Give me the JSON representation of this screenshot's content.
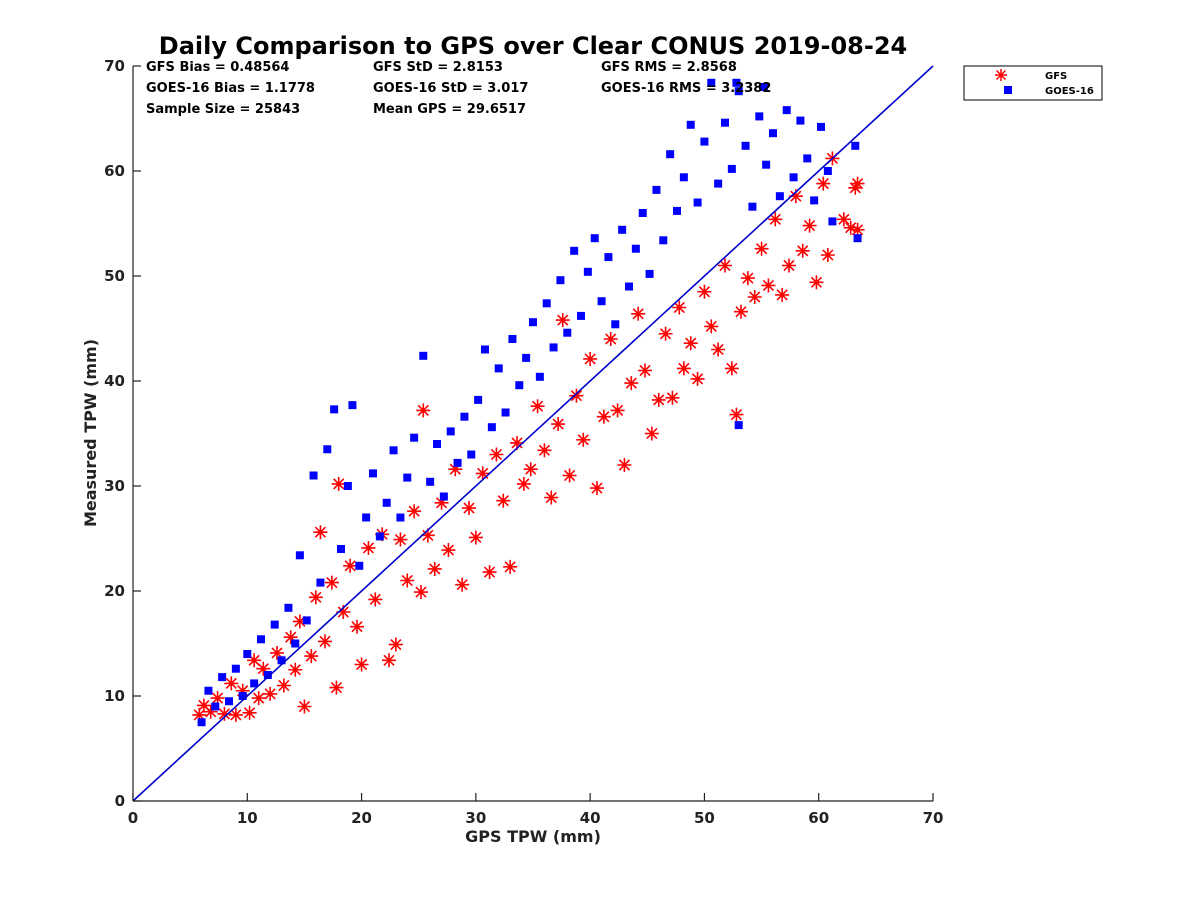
{
  "chart_data": {
    "type": "scatter",
    "title": "Daily Comparison to GPS over Clear CONUS 2019-08-24",
    "xlabel": "GPS TPW (mm)",
    "ylabel": "Measured TPW (mm)",
    "xlim": [
      0,
      70
    ],
    "ylim": [
      0,
      70
    ],
    "xticks": [
      "0",
      "10",
      "20",
      "30",
      "40",
      "50",
      "60",
      "70"
    ],
    "yticks": [
      "0",
      "10",
      "20",
      "30",
      "40",
      "50",
      "60",
      "70"
    ],
    "reference_line": "1:1 line y = x",
    "stats": [
      "GFS Bias = 0.48564",
      "GFS StD = 2.8153",
      "GFS RMS = 2.8568",
      "GOES-16 Bias = 1.1778",
      "GOES-16 StD = 3.017",
      "GOES-16 RMS = 3.2382",
      "Sample Size = 25843",
      "Mean GPS = 29.6517"
    ],
    "legend_position": "outside top-right",
    "series": [
      {
        "name": "GFS",
        "marker": "asterisk",
        "color": "#ff0000",
        "points": [
          [
            5.8,
            8.2
          ],
          [
            6.2,
            9.1
          ],
          [
            6.8,
            8.5
          ],
          [
            7.4,
            9.8
          ],
          [
            8.0,
            8.3
          ],
          [
            8.6,
            11.2
          ],
          [
            9.0,
            8.2
          ],
          [
            9.6,
            10.5
          ],
          [
            10.2,
            8.4
          ],
          [
            10.6,
            13.4
          ],
          [
            11.0,
            9.8
          ],
          [
            11.4,
            12.6
          ],
          [
            12.0,
            10.2
          ],
          [
            12.6,
            14.1
          ],
          [
            13.2,
            11.0
          ],
          [
            13.8,
            15.6
          ],
          [
            14.2,
            12.5
          ],
          [
            14.6,
            17.1
          ],
          [
            15.0,
            9.0
          ],
          [
            15.6,
            13.8
          ],
          [
            16.0,
            19.4
          ],
          [
            16.4,
            25.6
          ],
          [
            16.8,
            15.2
          ],
          [
            17.4,
            20.8
          ],
          [
            17.8,
            10.8
          ],
          [
            18.0,
            30.2
          ],
          [
            18.4,
            18.0
          ],
          [
            19.0,
            22.4
          ],
          [
            19.6,
            16.6
          ],
          [
            20.0,
            13.0
          ],
          [
            20.6,
            24.1
          ],
          [
            21.2,
            19.2
          ],
          [
            21.8,
            25.4
          ],
          [
            22.4,
            13.4
          ],
          [
            23.0,
            14.9
          ],
          [
            23.4,
            24.9
          ],
          [
            24.0,
            21.0
          ],
          [
            24.6,
            27.6
          ],
          [
            25.2,
            19.9
          ],
          [
            25.4,
            37.2
          ],
          [
            25.8,
            25.3
          ],
          [
            26.4,
            22.1
          ],
          [
            27.0,
            28.4
          ],
          [
            27.6,
            23.9
          ],
          [
            28.2,
            31.6
          ],
          [
            28.8,
            20.6
          ],
          [
            29.4,
            27.9
          ],
          [
            30.0,
            25.1
          ],
          [
            30.6,
            31.2
          ],
          [
            31.2,
            21.8
          ],
          [
            31.8,
            33.0
          ],
          [
            32.4,
            28.6
          ],
          [
            33.0,
            22.3
          ],
          [
            33.6,
            34.1
          ],
          [
            34.2,
            30.2
          ],
          [
            34.8,
            31.6
          ],
          [
            35.4,
            37.6
          ],
          [
            36.0,
            33.4
          ],
          [
            36.6,
            28.9
          ],
          [
            37.2,
            35.9
          ],
          [
            37.6,
            45.8
          ],
          [
            38.2,
            31.0
          ],
          [
            38.8,
            38.6
          ],
          [
            39.4,
            34.4
          ],
          [
            40.0,
            42.1
          ],
          [
            40.6,
            29.8
          ],
          [
            41.2,
            36.6
          ],
          [
            41.8,
            44.0
          ],
          [
            42.4,
            37.2
          ],
          [
            43.0,
            32.0
          ],
          [
            43.6,
            39.8
          ],
          [
            44.2,
            46.4
          ],
          [
            44.8,
            41.0
          ],
          [
            45.4,
            35.0
          ],
          [
            46.0,
            38.2
          ],
          [
            46.6,
            44.5
          ],
          [
            47.2,
            38.4
          ],
          [
            47.8,
            47.0
          ],
          [
            48.2,
            41.2
          ],
          [
            48.8,
            43.6
          ],
          [
            49.4,
            40.2
          ],
          [
            50.0,
            48.5
          ],
          [
            50.6,
            45.2
          ],
          [
            51.2,
            43.0
          ],
          [
            51.8,
            51.0
          ],
          [
            52.4,
            41.2
          ],
          [
            52.8,
            36.8
          ],
          [
            53.2,
            46.6
          ],
          [
            53.8,
            49.8
          ],
          [
            54.4,
            48.0
          ],
          [
            55.0,
            52.6
          ],
          [
            55.6,
            49.1
          ],
          [
            56.2,
            55.4
          ],
          [
            56.8,
            48.2
          ],
          [
            57.4,
            51.0
          ],
          [
            58.0,
            57.6
          ],
          [
            58.6,
            52.4
          ],
          [
            59.2,
            54.8
          ],
          [
            59.8,
            49.4
          ],
          [
            60.4,
            58.8
          ],
          [
            60.8,
            52.0
          ],
          [
            61.2,
            61.2
          ],
          [
            62.2,
            55.4
          ],
          [
            62.8,
            54.6
          ],
          [
            63.2,
            58.4
          ],
          [
            63.4,
            54.4
          ],
          [
            63.4,
            58.8
          ]
        ]
      },
      {
        "name": "GOES-16",
        "marker": "square",
        "color": "#0000ff",
        "points": [
          [
            6.0,
            7.5
          ],
          [
            6.6,
            10.5
          ],
          [
            7.2,
            9.0
          ],
          [
            7.8,
            11.8
          ],
          [
            8.4,
            9.5
          ],
          [
            9.0,
            12.6
          ],
          [
            9.6,
            10.0
          ],
          [
            10.0,
            14.0
          ],
          [
            10.6,
            11.2
          ],
          [
            11.2,
            15.4
          ],
          [
            11.8,
            12.0
          ],
          [
            12.4,
            16.8
          ],
          [
            13.0,
            13.4
          ],
          [
            13.6,
            18.4
          ],
          [
            14.2,
            15.0
          ],
          [
            14.6,
            23.4
          ],
          [
            15.2,
            17.2
          ],
          [
            15.8,
            31.0
          ],
          [
            16.4,
            20.8
          ],
          [
            17.0,
            33.5
          ],
          [
            17.6,
            37.3
          ],
          [
            18.2,
            24.0
          ],
          [
            18.8,
            30.0
          ],
          [
            19.2,
            37.7
          ],
          [
            19.8,
            22.4
          ],
          [
            20.4,
            27.0
          ],
          [
            21.0,
            31.2
          ],
          [
            21.6,
            25.2
          ],
          [
            22.2,
            28.4
          ],
          [
            22.8,
            33.4
          ],
          [
            23.4,
            27.0
          ],
          [
            24.0,
            30.8
          ],
          [
            24.6,
            34.6
          ],
          [
            25.4,
            42.4
          ],
          [
            26.0,
            30.4
          ],
          [
            26.6,
            34.0
          ],
          [
            27.2,
            29.0
          ],
          [
            27.8,
            35.2
          ],
          [
            28.4,
            32.2
          ],
          [
            29.0,
            36.6
          ],
          [
            29.6,
            33.0
          ],
          [
            30.2,
            38.2
          ],
          [
            30.8,
            43.0
          ],
          [
            31.4,
            35.6
          ],
          [
            32.0,
            41.2
          ],
          [
            32.6,
            37.0
          ],
          [
            33.2,
            44.0
          ],
          [
            33.8,
            39.6
          ],
          [
            34.4,
            42.2
          ],
          [
            35.0,
            45.6
          ],
          [
            35.6,
            40.4
          ],
          [
            36.2,
            47.4
          ],
          [
            36.8,
            43.2
          ],
          [
            37.4,
            49.6
          ],
          [
            38.0,
            44.6
          ],
          [
            38.6,
            52.4
          ],
          [
            39.2,
            46.2
          ],
          [
            39.8,
            50.4
          ],
          [
            40.4,
            53.6
          ],
          [
            41.0,
            47.6
          ],
          [
            41.6,
            51.8
          ],
          [
            42.2,
            45.4
          ],
          [
            42.8,
            54.4
          ],
          [
            43.4,
            49.0
          ],
          [
            44.0,
            52.6
          ],
          [
            44.6,
            56.0
          ],
          [
            45.2,
            50.2
          ],
          [
            45.8,
            58.2
          ],
          [
            46.4,
            53.4
          ],
          [
            47.0,
            61.6
          ],
          [
            47.6,
            56.2
          ],
          [
            48.2,
            59.4
          ],
          [
            48.8,
            64.4
          ],
          [
            49.4,
            57.0
          ],
          [
            50.0,
            62.8
          ],
          [
            50.6,
            68.4
          ],
          [
            51.2,
            58.8
          ],
          [
            51.8,
            64.6
          ],
          [
            52.4,
            60.2
          ],
          [
            53.0,
            67.6
          ],
          [
            53.6,
            62.4
          ],
          [
            54.2,
            56.6
          ],
          [
            54.8,
            65.2
          ],
          [
            55.4,
            60.6
          ],
          [
            56.0,
            63.6
          ],
          [
            56.6,
            57.6
          ],
          [
            57.2,
            65.8
          ],
          [
            57.8,
            59.4
          ],
          [
            58.4,
            64.8
          ],
          [
            59.0,
            61.2
          ],
          [
            59.6,
            57.2
          ],
          [
            60.2,
            64.2
          ],
          [
            60.8,
            60.0
          ],
          [
            61.2,
            55.2
          ],
          [
            63.2,
            62.4
          ],
          [
            63.4,
            53.6
          ],
          [
            53.0,
            35.8
          ],
          [
            52.8,
            68.4
          ],
          [
            55.2,
            68.0
          ]
        ]
      }
    ]
  },
  "legend": {
    "items": [
      {
        "label": "GFS"
      },
      {
        "label": "GOES-16"
      }
    ]
  }
}
